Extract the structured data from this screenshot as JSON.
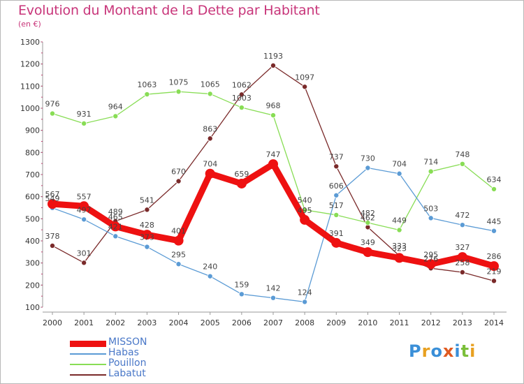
{
  "title": "Evolution du Montant de la Dette par Habitant",
  "subtitle": "(en €)",
  "logo": {
    "text": "Proxiti",
    "letters": [
      {
        "ch": "P",
        "color": "#3a8fd8"
      },
      {
        "ch": "r",
        "color": "#e8a020"
      },
      {
        "ch": "o",
        "color": "#3a8fd8"
      },
      {
        "ch": "x",
        "color": "#e05a20"
      },
      {
        "ch": "i",
        "color": "#3a8fd8"
      },
      {
        "ch": "t",
        "color": "#7bbf3a"
      },
      {
        "ch": "i",
        "color": "#e8a020"
      }
    ]
  },
  "chart_data": {
    "type": "line",
    "title": "Evolution du Montant de la Dette par Habitant",
    "ylabel": "(en €)",
    "x": [
      2000,
      2001,
      2002,
      2003,
      2004,
      2005,
      2006,
      2007,
      2008,
      2009,
      2010,
      2011,
      2012,
      2013,
      2014
    ],
    "ylim": [
      100,
      1300
    ],
    "yticks": [
      100,
      200,
      300,
      400,
      500,
      600,
      700,
      800,
      900,
      1000,
      1100,
      1200,
      1300
    ],
    "grid": false,
    "legend_position": "bottom-left",
    "series": [
      {
        "name": "MISSON",
        "color": "#ee1111",
        "values": [
          567,
          557,
          465,
          428,
          401,
          704,
          659,
          747,
          495,
          391,
          349,
          323,
          295,
          327,
          286
        ]
      },
      {
        "name": "Habas",
        "color": "#5b9bd5",
        "values": [
          549,
          497,
          421,
          373,
          295,
          240,
          159,
          142,
          124,
          606,
          730,
          704,
          503,
          472,
          445
        ]
      },
      {
        "name": "Pouillon",
        "color": "#88dd55",
        "values": [
          976,
          931,
          964,
          1063,
          1075,
          1065,
          1003,
          968,
          540,
          517,
          482,
          449,
          714,
          748,
          634
        ]
      },
      {
        "name": "Labatut",
        "color": "#7a2a2a",
        "values": [
          378,
          301,
          489,
          541,
          670,
          863,
          1062,
          1193,
          1097,
          737,
          462,
          333,
          276,
          258,
          219
        ]
      }
    ]
  }
}
